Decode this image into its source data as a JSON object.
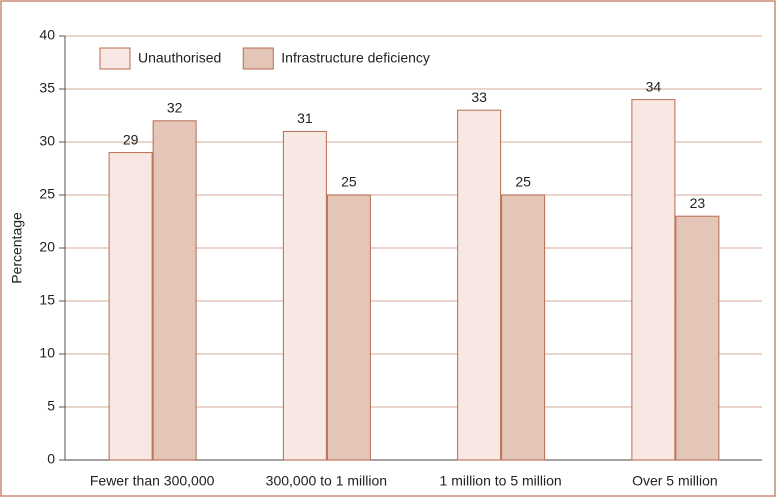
{
  "chart_data": {
    "type": "bar",
    "y_label": "Percentage",
    "categories": [
      "Fewer than 300,000",
      "300,000 to 1 million",
      "1 million to 5 million",
      "Over 5 million"
    ],
    "series": [
      {
        "name": "Unauthorised",
        "color": "#f8e8e3",
        "values": [
          29,
          31,
          33,
          34
        ]
      },
      {
        "name": "Infrastructure deficiency",
        "color": "#e4c6b8",
        "values": [
          32,
          25,
          25,
          23
        ]
      }
    ],
    "ylim": [
      0,
      40
    ],
    "yticks": [
      0,
      5,
      10,
      15,
      20,
      25,
      30,
      35,
      40
    ],
    "grid": true,
    "legend": "top-left"
  }
}
